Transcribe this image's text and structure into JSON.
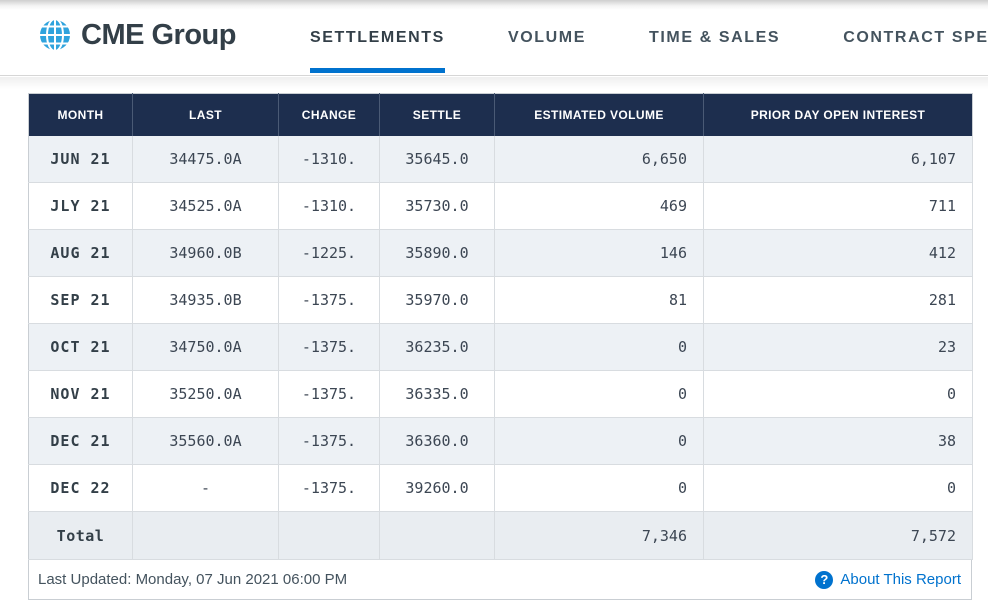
{
  "brand": {
    "name": "CME Group"
  },
  "nav": {
    "tabs": [
      {
        "label": "SETTLEMENTS",
        "active": true
      },
      {
        "label": "VOLUME",
        "active": false
      },
      {
        "label": "TIME & SALES",
        "active": false
      },
      {
        "label": "CONTRACT SPEC",
        "active": false
      }
    ]
  },
  "chart_data": {
    "type": "table",
    "columns": [
      "MONTH",
      "LAST",
      "CHANGE",
      "SETTLE",
      "ESTIMATED VOLUME",
      "PRIOR DAY OPEN INTEREST"
    ],
    "rows": [
      {
        "month": "JUN 21",
        "last": "34475.0A",
        "change": "-1310.",
        "settle": "35645.0",
        "volume": "6,650",
        "open_interest": "6,107"
      },
      {
        "month": "JLY 21",
        "last": "34525.0A",
        "change": "-1310.",
        "settle": "35730.0",
        "volume": "469",
        "open_interest": "711"
      },
      {
        "month": "AUG 21",
        "last": "34960.0B",
        "change": "-1225.",
        "settle": "35890.0",
        "volume": "146",
        "open_interest": "412"
      },
      {
        "month": "SEP 21",
        "last": "34935.0B",
        "change": "-1375.",
        "settle": "35970.0",
        "volume": "81",
        "open_interest": "281"
      },
      {
        "month": "OCT 21",
        "last": "34750.0A",
        "change": "-1375.",
        "settle": "36235.0",
        "volume": "0",
        "open_interest": "23"
      },
      {
        "month": "NOV 21",
        "last": "35250.0A",
        "change": "-1375.",
        "settle": "36335.0",
        "volume": "0",
        "open_interest": "0"
      },
      {
        "month": "DEC 21",
        "last": "35560.0A",
        "change": "-1375.",
        "settle": "36360.0",
        "volume": "0",
        "open_interest": "38"
      },
      {
        "month": "DEC 22",
        "last": "-",
        "change": "-1375.",
        "settle": "39260.0",
        "volume": "0",
        "open_interest": "0"
      }
    ],
    "total": {
      "label": "Total",
      "volume": "7,346",
      "open_interest": "7,572"
    }
  },
  "footer": {
    "last_updated": "Last Updated: Monday, 07 Jun 2021 06:00 PM",
    "about_icon": "?",
    "about_link": "About This Report"
  },
  "colors": {
    "accent_blue": "#0072ce",
    "header_navy": "#1d2e4e",
    "alt_row": "#edf1f5",
    "logo_globe_blue": "#2fa3dd",
    "text_slate": "#333f48"
  }
}
